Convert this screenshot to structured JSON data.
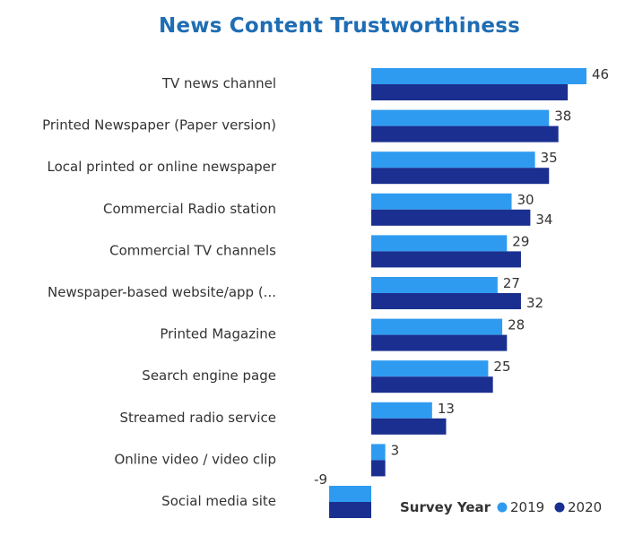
{
  "chart_data": {
    "type": "bar",
    "orientation": "horizontal",
    "title": "News Content Trustworthiness",
    "categories": [
      "TV news channel",
      "Printed Newspaper (Paper version)",
      "Local printed or online newspaper",
      "Commercial Radio station",
      "Commercial TV channels",
      "Newspaper-based website/app (...",
      "Printed Magazine",
      "Search engine page",
      "Streamed radio service",
      "Online video / video clip",
      "Social media site"
    ],
    "series": [
      {
        "name": "2019",
        "color": "#2e9bf0",
        "values": [
          46,
          38,
          35,
          30,
          29,
          27,
          28,
          25,
          13,
          3,
          -9
        ]
      },
      {
        "name": "2020",
        "color": "#1a2f8f",
        "values": [
          42,
          40,
          38,
          34,
          32,
          32,
          29,
          26,
          16,
          3,
          -9
        ]
      }
    ],
    "data_labels": [
      {
        "category_index": 0,
        "series": "2019",
        "text": "46"
      },
      {
        "category_index": 1,
        "series": "2019",
        "text": "38"
      },
      {
        "category_index": 2,
        "series": "2019",
        "text": "35"
      },
      {
        "category_index": 3,
        "series": "2019",
        "text": "30"
      },
      {
        "category_index": 3,
        "series": "2020",
        "text": "34"
      },
      {
        "category_index": 4,
        "series": "2019",
        "text": "29"
      },
      {
        "category_index": 5,
        "series": "2019",
        "text": "27"
      },
      {
        "category_index": 5,
        "series": "2020",
        "text": "32"
      },
      {
        "category_index": 6,
        "series": "2019",
        "text": "28"
      },
      {
        "category_index": 7,
        "series": "2019",
        "text": "25"
      },
      {
        "category_index": 8,
        "series": "2019",
        "text": "13"
      },
      {
        "category_index": 9,
        "series": "2019",
        "text": "3"
      },
      {
        "category_index": 10,
        "series": "2019",
        "text": "-9"
      }
    ],
    "legend": {
      "title": "Survey Year",
      "position": "bottom-right"
    },
    "grid": false
  }
}
